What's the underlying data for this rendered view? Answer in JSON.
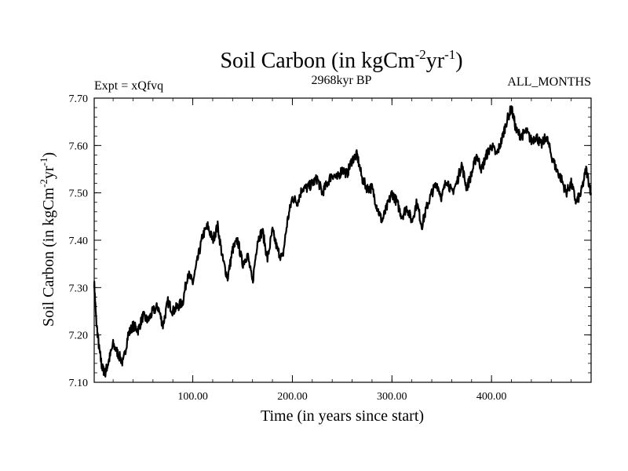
{
  "chart_data": {
    "type": "line",
    "title_main": "Soil Carbon (in kgCm",
    "title_sup1": "-2",
    "title_mid": "yr",
    "title_sup2": "-1",
    "title_end": ")",
    "subtitle_left": "Expt = xQfvq",
    "subtitle_center": "2968kyr BP",
    "subtitle_right": "ALL_MONTHS",
    "xlabel": "Time (in years since start)",
    "ylabel_main": "Soil Carbon (in kgCm",
    "ylabel_sup1": "-2",
    "ylabel_mid": "yr",
    "ylabel_sup2": "-1",
    "ylabel_end": ")",
    "xlim": [
      1,
      500
    ],
    "ylim": [
      7.1,
      7.7
    ],
    "xticks": [
      100,
      200,
      300,
      400
    ],
    "xtick_labels": [
      "100.00",
      "200.00",
      "300.00",
      "400.00"
    ],
    "yticks": [
      7.1,
      7.2,
      7.3,
      7.4,
      7.5,
      7.6,
      7.7
    ],
    "ytick_labels": [
      "7.10",
      "7.20",
      "7.30",
      "7.40",
      "7.50",
      "7.60",
      "7.70"
    ],
    "series": [
      {
        "name": "Soil Carbon",
        "color": "#000000",
        "x": [
          1,
          3,
          6,
          9,
          12,
          15,
          20,
          25,
          30,
          35,
          40,
          45,
          50,
          55,
          60,
          65,
          70,
          75,
          80,
          85,
          90,
          95,
          100,
          105,
          110,
          115,
          120,
          125,
          130,
          135,
          140,
          145,
          150,
          155,
          160,
          165,
          170,
          175,
          180,
          185,
          190,
          195,
          200,
          205,
          210,
          215,
          220,
          225,
          230,
          235,
          240,
          245,
          250,
          255,
          260,
          265,
          270,
          275,
          280,
          285,
          290,
          295,
          300,
          305,
          310,
          315,
          320,
          325,
          330,
          335,
          340,
          345,
          350,
          355,
          360,
          365,
          370,
          375,
          380,
          385,
          390,
          395,
          400,
          405,
          410,
          415,
          420,
          425,
          430,
          435,
          440,
          445,
          450,
          455,
          460,
          465,
          470,
          475,
          480,
          485,
          490,
          495,
          500
        ],
        "y": [
          7.31,
          7.23,
          7.17,
          7.13,
          7.12,
          7.14,
          7.18,
          7.16,
          7.14,
          7.2,
          7.22,
          7.21,
          7.24,
          7.23,
          7.25,
          7.26,
          7.22,
          7.27,
          7.25,
          7.26,
          7.27,
          7.33,
          7.31,
          7.36,
          7.41,
          7.43,
          7.4,
          7.43,
          7.36,
          7.32,
          7.38,
          7.4,
          7.35,
          7.37,
          7.31,
          7.4,
          7.42,
          7.36,
          7.42,
          7.38,
          7.36,
          7.44,
          7.49,
          7.48,
          7.51,
          7.51,
          7.52,
          7.53,
          7.5,
          7.52,
          7.54,
          7.53,
          7.55,
          7.54,
          7.57,
          7.58,
          7.53,
          7.51,
          7.51,
          7.47,
          7.44,
          7.47,
          7.5,
          7.48,
          7.45,
          7.47,
          7.44,
          7.48,
          7.43,
          7.47,
          7.5,
          7.52,
          7.49,
          7.53,
          7.5,
          7.52,
          7.56,
          7.51,
          7.54,
          7.58,
          7.55,
          7.58,
          7.6,
          7.58,
          7.61,
          7.65,
          7.68,
          7.63,
          7.62,
          7.63,
          7.61,
          7.62,
          7.6,
          7.62,
          7.58,
          7.55,
          7.53,
          7.5,
          7.52,
          7.48,
          7.5,
          7.55,
          7.5
        ]
      }
    ]
  }
}
